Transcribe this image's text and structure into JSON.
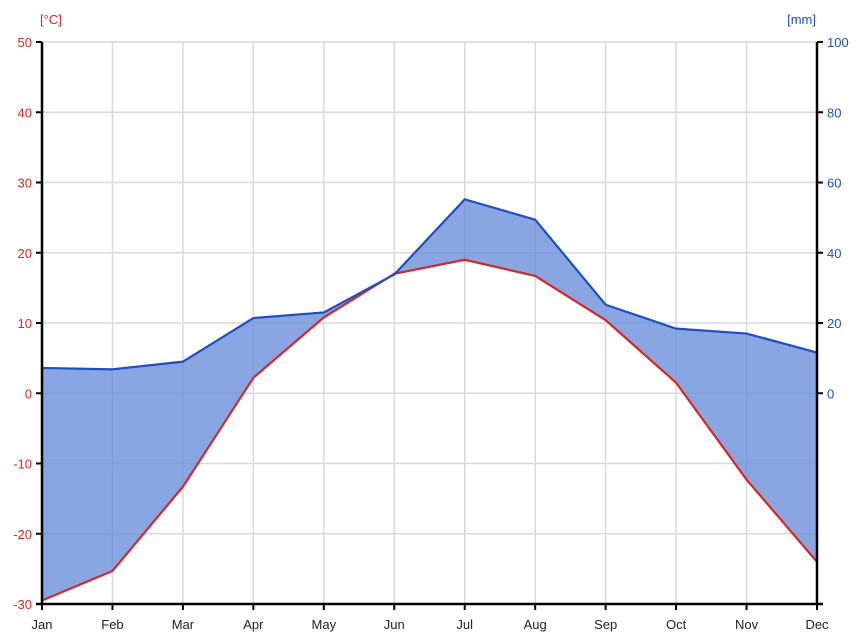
{
  "chart_data": {
    "type": "line",
    "categories": [
      "Jan",
      "Feb",
      "Mar",
      "Apr",
      "May",
      "Jun",
      "Jul",
      "Aug",
      "Sep",
      "Oct",
      "Nov",
      "Dec"
    ],
    "series": [
      {
        "axis": "left",
        "color": "#d62728",
        "values": [
          -29.5,
          -25.3,
          -13.3,
          2.2,
          10.8,
          17.0,
          19.0,
          16.7,
          10.4,
          1.5,
          -12.3,
          -24.0
        ]
      },
      {
        "axis": "right",
        "color": "#1f4fbf",
        "values": [
          7.2,
          6.8,
          9.0,
          21.4,
          23.0,
          33.8,
          55.2,
          49.4,
          25.2,
          18.4,
          17.0,
          11.6
        ]
      }
    ],
    "fill_between": {
      "color": "#6f93dc"
    },
    "left_axis": {
      "unit": "[°C]",
      "ylim": [
        -30,
        50
      ],
      "ticks": [
        "50",
        "40",
        "30",
        "20",
        "10",
        "0",
        "-10",
        "-20",
        "-30"
      ]
    },
    "right_axis": {
      "unit": "[mm]",
      "ylim": [
        -60,
        100
      ],
      "ticks": [
        "100",
        "80",
        "60",
        "40",
        "20",
        "0"
      ]
    },
    "grid": true
  }
}
